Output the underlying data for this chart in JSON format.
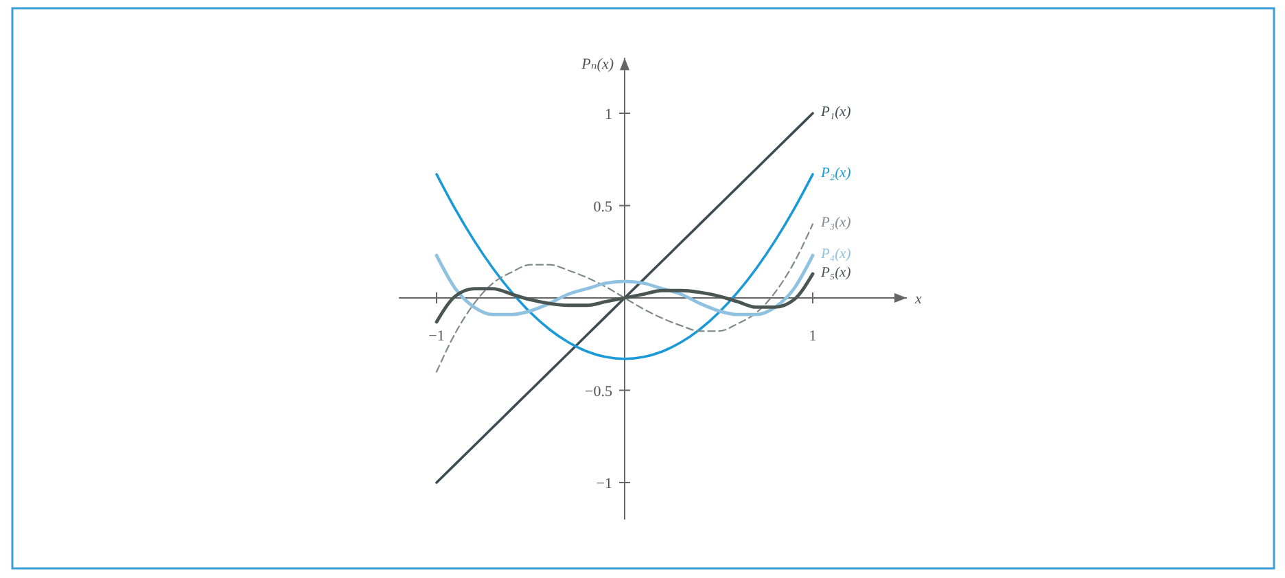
{
  "chart_data": {
    "type": "line",
    "xlabel": "x",
    "ylabel": "Pₙ(x)",
    "x": [
      -1,
      -0.9,
      -0.8,
      -0.7,
      -0.6,
      -0.5,
      -0.4,
      -0.3,
      -0.2,
      -0.1,
      0,
      0.1,
      0.2,
      0.3,
      0.4,
      0.5,
      0.6,
      0.7,
      0.8,
      0.9,
      1
    ],
    "series": [
      {
        "name": "P₁(x)",
        "color": "#3e4d52",
        "values": [
          -1,
          -0.9,
          -0.8,
          -0.7,
          -0.6,
          -0.5,
          -0.4,
          -0.3,
          -0.2,
          -0.1,
          0,
          0.1,
          0.2,
          0.3,
          0.4,
          0.5,
          0.6,
          0.7,
          0.8,
          0.9,
          1
        ]
      },
      {
        "name": "P₂(x)",
        "color": "#1b9ad7",
        "values": [
          0.67,
          0.48,
          0.31,
          0.16,
          0.03,
          -0.08,
          -0.17,
          -0.24,
          -0.29,
          -0.32,
          -0.33,
          -0.32,
          -0.29,
          -0.24,
          -0.17,
          -0.08,
          0.03,
          0.16,
          0.31,
          0.48,
          0.67
        ]
      },
      {
        "name": "P₃(x)",
        "color": "#7f8a8f",
        "line_style": "dashed",
        "values": [
          -0.4,
          -0.19,
          -0.03,
          0.08,
          0.14,
          0.18,
          0.18,
          0.15,
          0.11,
          0.06,
          0,
          -0.06,
          -0.11,
          -0.15,
          -0.18,
          -0.18,
          -0.14,
          -0.08,
          0.03,
          0.19,
          0.4
        ]
      },
      {
        "name": "P₄(x)",
        "color": "#8fc2e0",
        "values": [
          0.23,
          0.05,
          -0.05,
          -0.09,
          -0.09,
          -0.07,
          -0.03,
          0.02,
          0.05,
          0.08,
          0.09,
          0.08,
          0.05,
          0.02,
          -0.03,
          -0.07,
          -0.09,
          -0.09,
          -0.05,
          0.05,
          0.23
        ]
      },
      {
        "name": "P₅(x)",
        "color": "#4a5652",
        "values": [
          -0.13,
          0.01,
          0.05,
          0.05,
          0.02,
          -0.01,
          -0.03,
          -0.04,
          -0.04,
          -0.02,
          0,
          0.02,
          0.04,
          0.04,
          0.03,
          0.01,
          -0.02,
          -0.05,
          -0.05,
          -0.01,
          0.13
        ]
      }
    ],
    "xlim": [
      -1.2,
      1.5
    ],
    "xticks": [
      {
        "value": -1,
        "label": "−1"
      },
      1
    ],
    "ylim": [
      -1.2,
      1.3
    ],
    "yticks": [
      {
        "value": -1,
        "label": "−1"
      },
      {
        "value": -0.5,
        "label": "−0.5"
      },
      0.5,
      1
    ]
  }
}
